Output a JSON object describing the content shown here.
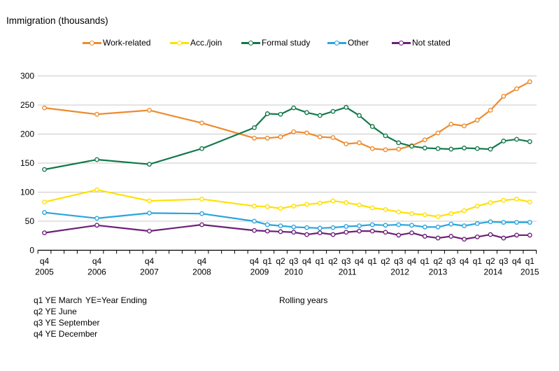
{
  "title": "Immigration (thousands)",
  "footnotes": {
    "q1_note": "q1 YE March",
    "ye_definition": "YE=Year Ending",
    "q2_note": "q2 YE June",
    "q3_note": "q3 YE September",
    "q4_note": "q4 YE December",
    "rolling_label": "Rolling years"
  },
  "chart_data": {
    "type": "line",
    "title": "Immigration (thousands)",
    "ylabel": "Immigration (thousands)",
    "xlabel": "Rolling years (quarters, year ending)",
    "ylim": [
      0,
      300
    ],
    "y_ticks": [
      0,
      50,
      100,
      150,
      200,
      250,
      300
    ],
    "grid": "horizontal",
    "legend_position": "top",
    "x_slot_count": 38,
    "data_slots": [
      0,
      4,
      8,
      12,
      16,
      17,
      18,
      19,
      20,
      21,
      22,
      23,
      24,
      25,
      26,
      27,
      28,
      29,
      30,
      31,
      32,
      33,
      34,
      35,
      36,
      37
    ],
    "x_point_labels": [
      "q4 2005",
      "q4 2006",
      "q4 2007",
      "q4 2008",
      "q4 2009",
      "q1 2010",
      "q2 2010",
      "q3 2010",
      "q4 2010",
      "q1 2011",
      "q2 2011",
      "q3 2011",
      "q4 2011",
      "q1 2012",
      "q2 2012",
      "q3 2012",
      "q4 2012",
      "q1 2013",
      "q2 2013",
      "q3 2013",
      "q4 2013",
      "q1 2014",
      "q2 2014",
      "q3 2014",
      "q4 2014",
      "q1 2015"
    ],
    "quarter_tick_labels": [
      {
        "slot": 0,
        "text": "q4"
      },
      {
        "slot": 4,
        "text": "q4"
      },
      {
        "slot": 8,
        "text": "q4"
      },
      {
        "slot": 12,
        "text": "q4"
      },
      {
        "slot": 16,
        "text": "q4"
      },
      {
        "slot": 17,
        "text": "q1"
      },
      {
        "slot": 18,
        "text": "q2"
      },
      {
        "slot": 19,
        "text": "q3"
      },
      {
        "slot": 20,
        "text": "q4"
      },
      {
        "slot": 21,
        "text": "q1"
      },
      {
        "slot": 22,
        "text": "q2"
      },
      {
        "slot": 23,
        "text": "q3"
      },
      {
        "slot": 24,
        "text": "q4"
      },
      {
        "slot": 25,
        "text": "q1"
      },
      {
        "slot": 26,
        "text": "q2"
      },
      {
        "slot": 27,
        "text": "q3"
      },
      {
        "slot": 28,
        "text": "q4"
      },
      {
        "slot": 29,
        "text": "q1"
      },
      {
        "slot": 30,
        "text": "q2"
      },
      {
        "slot": 31,
        "text": "q3"
      },
      {
        "slot": 32,
        "text": "q4"
      },
      {
        "slot": 33,
        "text": "q1"
      },
      {
        "slot": 34,
        "text": "q2"
      },
      {
        "slot": 35,
        "text": "q3"
      },
      {
        "slot": 36,
        "text": "q4"
      },
      {
        "slot": 37,
        "text": "q1"
      }
    ],
    "year_tick_labels": [
      {
        "slot": 0,
        "text": "2005"
      },
      {
        "slot": 4,
        "text": "2006"
      },
      {
        "slot": 8,
        "text": "2007"
      },
      {
        "slot": 12,
        "text": "2008"
      },
      {
        "slot": 16.4,
        "text": "2009"
      },
      {
        "slot": 19,
        "text": "2010"
      },
      {
        "slot": 23.1,
        "text": "2011"
      },
      {
        "slot": 27.1,
        "text": "2012"
      },
      {
        "slot": 30,
        "text": "2013"
      },
      {
        "slot": 34.2,
        "text": "2014"
      },
      {
        "slot": 37,
        "text": "2015"
      }
    ],
    "series": [
      {
        "name": "Work-related",
        "color": "#ED8B2E",
        "values": [
          245,
          234,
          241,
          219,
          193,
          193,
          195,
          204,
          202,
          195,
          194,
          183,
          185,
          175,
          173,
          174,
          180,
          190,
          202,
          217,
          214,
          224,
          241,
          265,
          278,
          290
        ]
      },
      {
        "name": "Acc./join",
        "color": "#FFE100",
        "values": [
          83,
          104,
          85,
          88,
          76,
          75,
          72,
          76,
          79,
          81,
          85,
          82,
          78,
          73,
          70,
          66,
          63,
          61,
          58,
          63,
          68,
          76,
          82,
          86,
          88,
          83
        ]
      },
      {
        "name": "Formal study",
        "color": "#12784A",
        "values": [
          139,
          156,
          148,
          175,
          211,
          235,
          234,
          245,
          237,
          232,
          239,
          246,
          232,
          213,
          197,
          185,
          179,
          176,
          175,
          174,
          176,
          175,
          174,
          188,
          191,
          187
        ]
      },
      {
        "name": "Other",
        "color": "#29A5DD",
        "values": [
          65,
          55,
          64,
          63,
          50,
          44,
          42,
          40,
          39,
          38,
          39,
          41,
          42,
          44,
          43,
          44,
          43,
          40,
          40,
          45,
          42,
          46,
          49,
          48,
          48,
          48
        ]
      },
      {
        "name": "Not stated",
        "color": "#6B2077",
        "values": [
          30,
          43,
          33,
          44,
          34,
          33,
          32,
          31,
          27,
          30,
          27,
          31,
          33,
          33,
          31,
          26,
          30,
          24,
          21,
          24,
          19,
          23,
          27,
          21,
          26,
          26
        ]
      }
    ]
  }
}
